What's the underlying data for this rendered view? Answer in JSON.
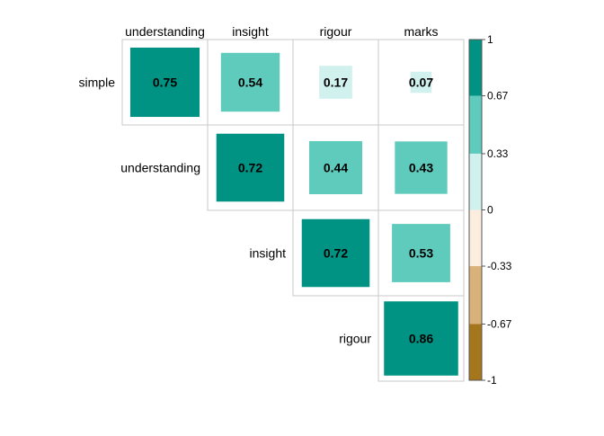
{
  "chart_data": {
    "type": "heatmap",
    "title": "",
    "variables": [
      "simple",
      "understanding",
      "insight",
      "rigour",
      "marks"
    ],
    "row_labels": [
      "simple",
      "understanding",
      "insight",
      "rigour"
    ],
    "column_labels": [
      "understanding",
      "insight",
      "rigour",
      "marks"
    ],
    "cells": [
      {
        "row": "simple",
        "col": "understanding",
        "value": 0.75,
        "label": "0.75"
      },
      {
        "row": "simple",
        "col": "insight",
        "value": 0.54,
        "label": "0.54"
      },
      {
        "row": "simple",
        "col": "rigour",
        "value": 0.17,
        "label": "0.17"
      },
      {
        "row": "simple",
        "col": "marks",
        "value": 0.07,
        "label": "0.07"
      },
      {
        "row": "understanding",
        "col": "insight",
        "value": 0.72,
        "label": "0.72"
      },
      {
        "row": "understanding",
        "col": "rigour",
        "value": 0.44,
        "label": "0.44"
      },
      {
        "row": "understanding",
        "col": "marks",
        "value": 0.43,
        "label": "0.43"
      },
      {
        "row": "insight",
        "col": "rigour",
        "value": 0.72,
        "label": "0.72"
      },
      {
        "row": "insight",
        "col": "marks",
        "value": 0.53,
        "label": "0.53"
      },
      {
        "row": "rigour",
        "col": "marks",
        "value": 0.86,
        "label": "0.86"
      }
    ],
    "colorbar": {
      "range": [
        -1,
        1
      ],
      "tick_labels": [
        "1",
        "0.67",
        "0.33",
        "0",
        "-0.33",
        "-0.67",
        "-1"
      ],
      "bins": [
        {
          "from": 0.67,
          "to": 1,
          "color": "#009384"
        },
        {
          "from": 0.33,
          "to": 0.67,
          "color": "#5ECBBD"
        },
        {
          "from": 0,
          "to": 0.33,
          "color": "#D1F1EE"
        },
        {
          "from": -0.33,
          "to": 0,
          "color": "#FBEEDF"
        },
        {
          "from": -0.67,
          "to": -0.33,
          "color": "#D9B27A"
        },
        {
          "from": -1,
          "to": -0.67,
          "color": "#A5761C"
        }
      ]
    },
    "legend_position": "right",
    "grid": true
  }
}
